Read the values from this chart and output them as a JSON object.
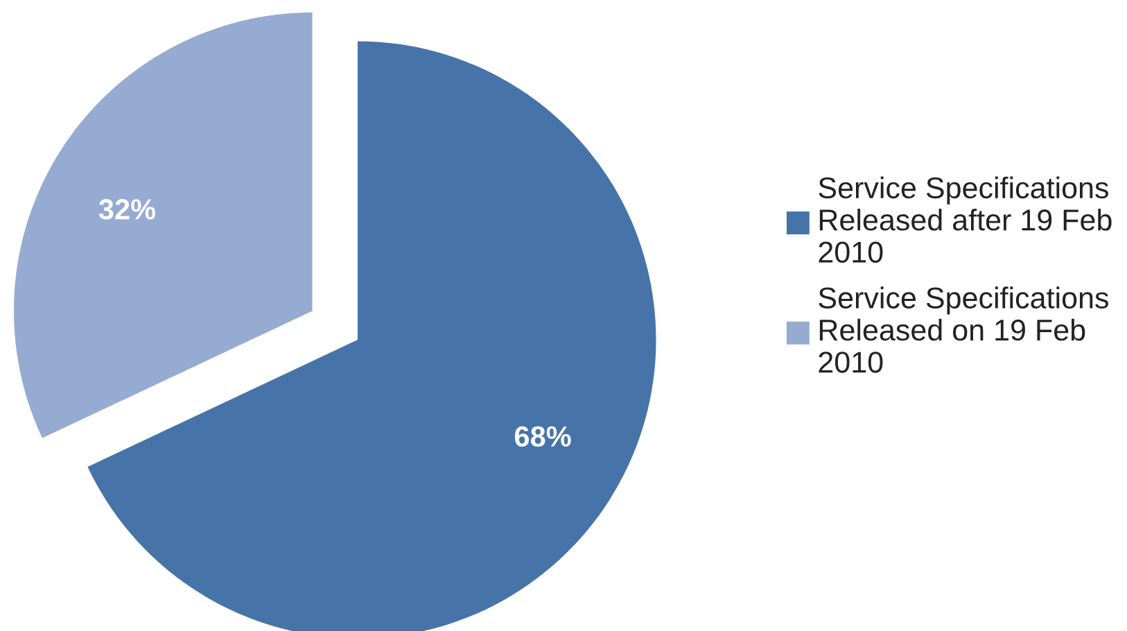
{
  "chart_data": {
    "type": "pie",
    "categories": [
      "Service Specifications\nReleased after 19 Feb\n2010",
      "Service Specifications\nReleased on 19 Feb\n2010"
    ],
    "values": [
      68,
      32
    ],
    "colors": [
      "#4674a9",
      "#95abd2"
    ],
    "value_labels": [
      "68%",
      "32%"
    ],
    "legend": "right"
  }
}
